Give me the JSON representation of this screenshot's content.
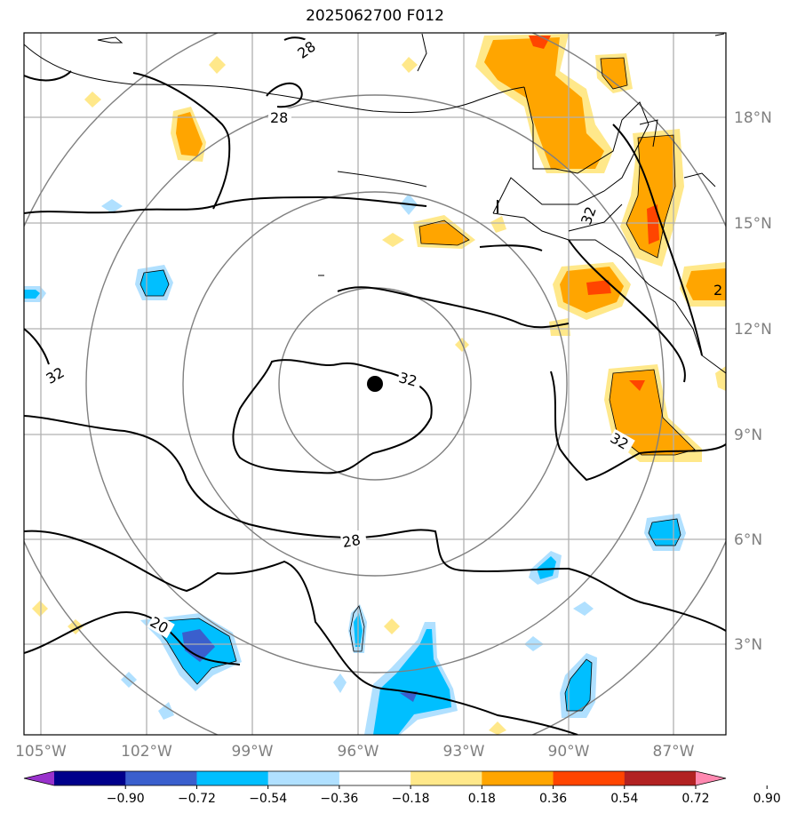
{
  "title": "2025062700 F012",
  "lon_labels": [
    "105°W",
    "102°W",
    "99°W",
    "96°W",
    "93°W",
    "90°W",
    "87°W"
  ],
  "lat_labels": [
    "18°N",
    "15°N",
    "12°N",
    "9°N",
    "6°N",
    "3°N"
  ],
  "colorbar": {
    "ticks": [
      "−0.90",
      "−0.72",
      "−0.54",
      "−0.36",
      "−0.18",
      "0.18",
      "0.36",
      "0.54",
      "0.72",
      "0.90"
    ],
    "colors": [
      "#9932cc",
      "#00008b",
      "#3a5fcd",
      "#00bfff",
      "#b0e0ff",
      "#ffffff",
      "#ffe88a",
      "#ffa500",
      "#ff4500",
      "#b22222",
      "#ff88b0"
    ]
  },
  "contour_labels": [
    "28",
    "28",
    "32",
    "32",
    "32",
    "28",
    "20",
    "32",
    "2"
  ],
  "center_marker": "storm-center"
}
